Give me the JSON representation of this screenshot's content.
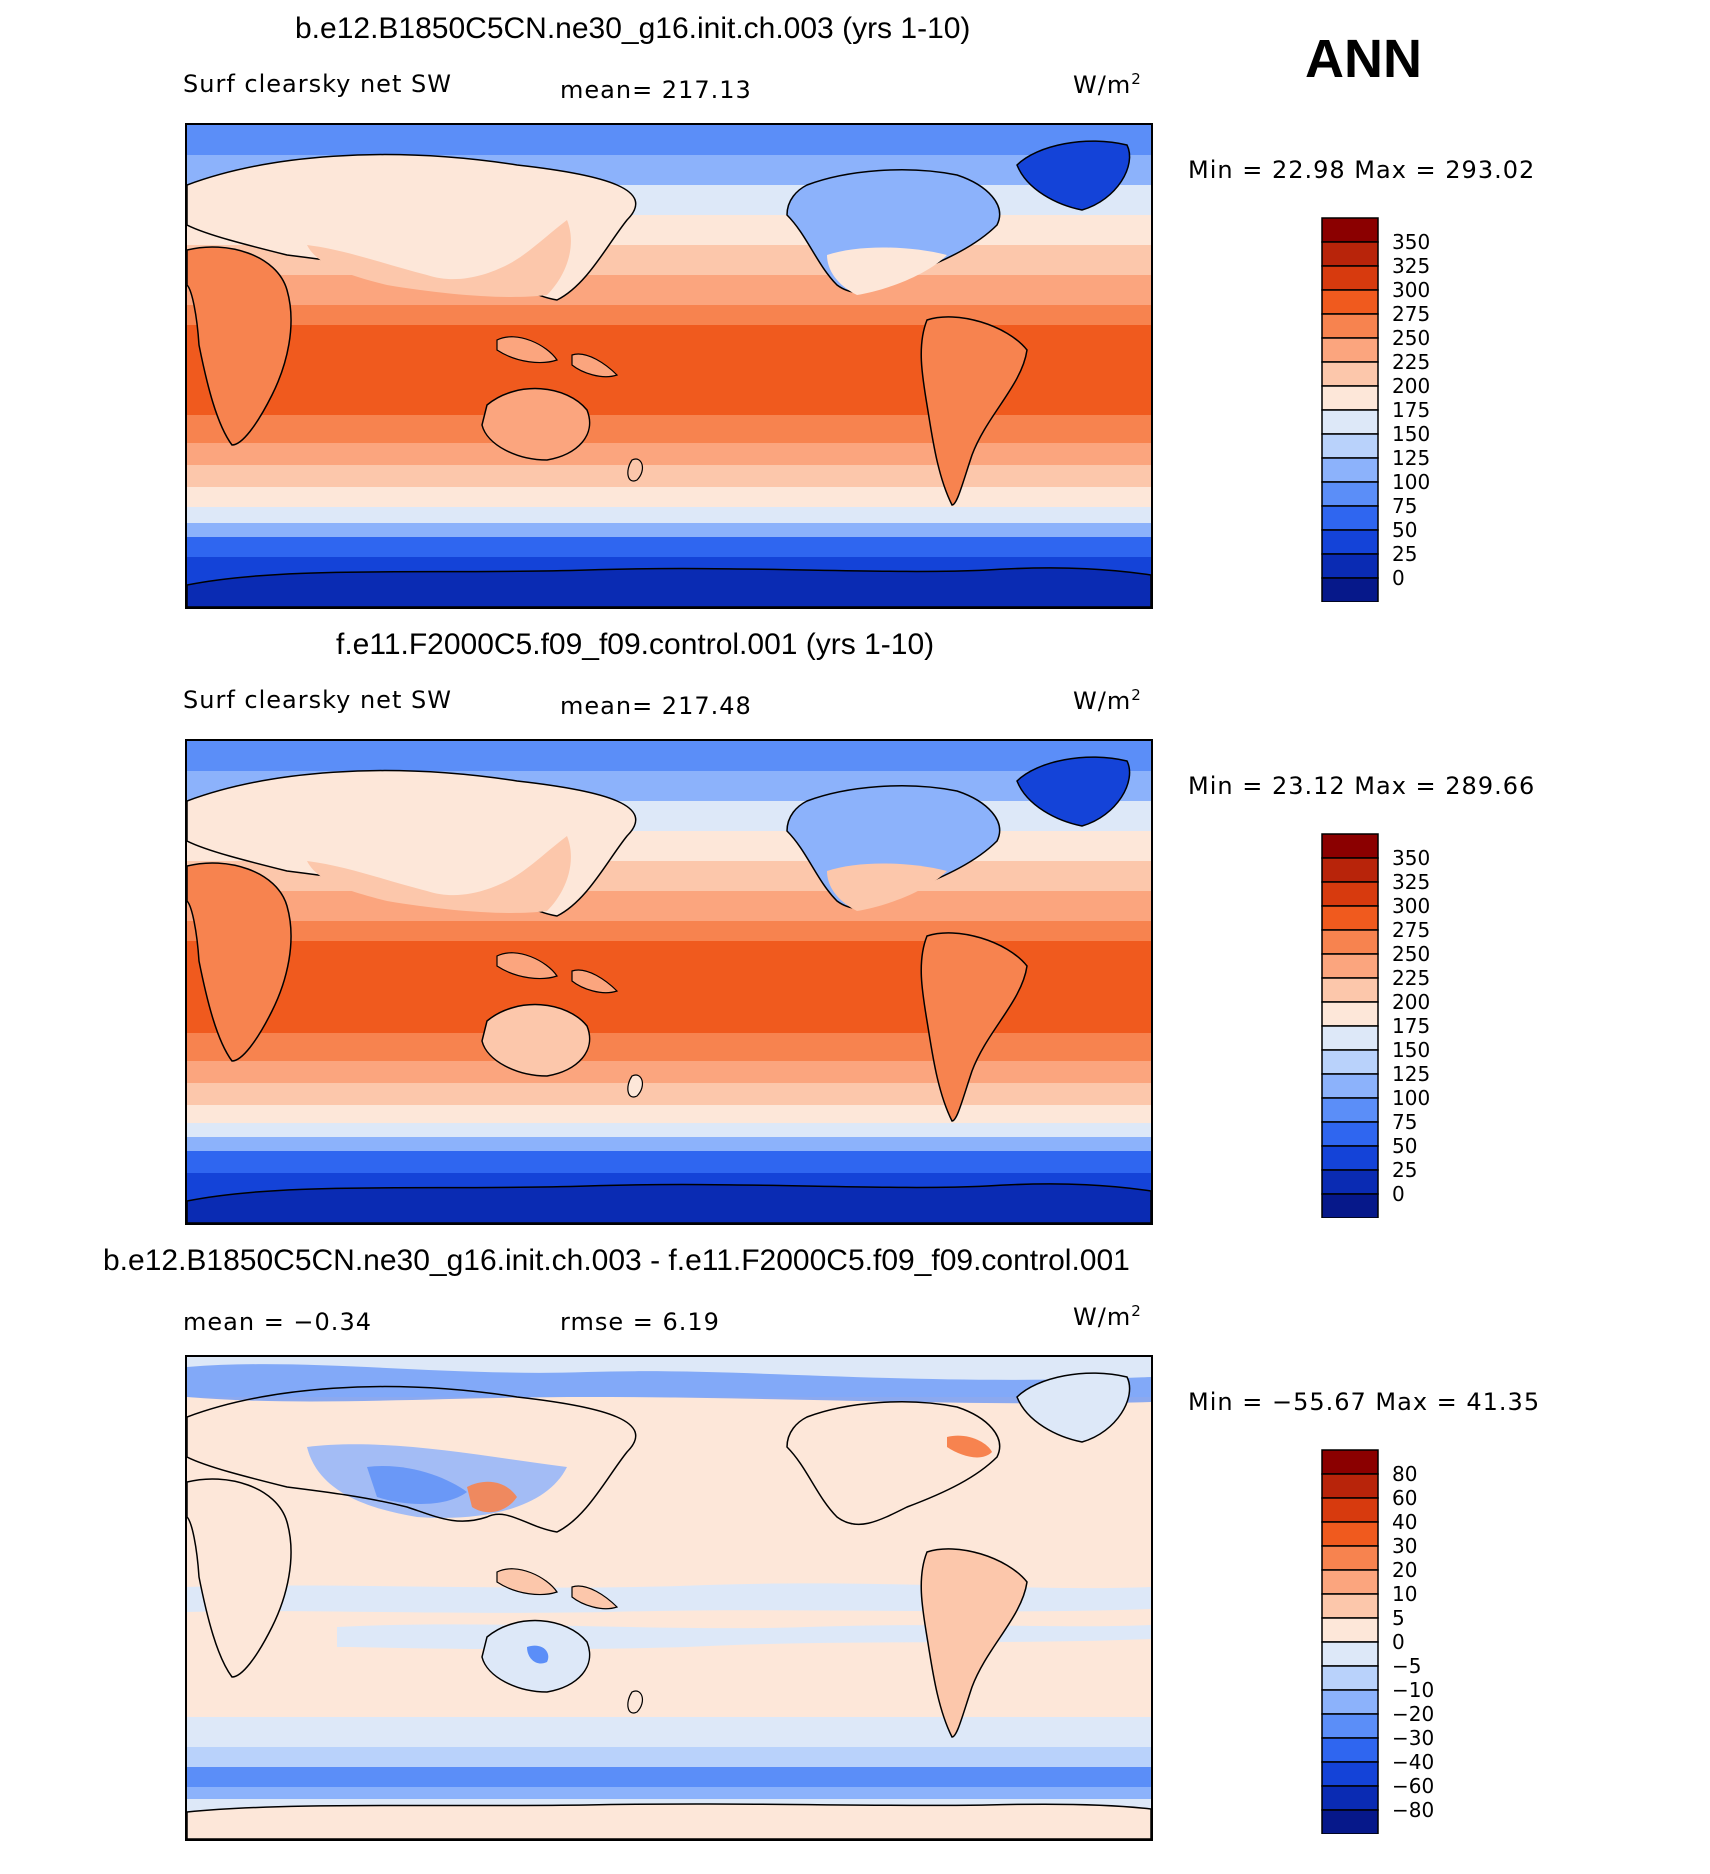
{
  "season": "ANN",
  "panels": [
    {
      "title": "b.e12.B1850C5CN.ne30_g16.init.ch.003 (yrs 1-10)",
      "left_label": "Surf clearsky net SW",
      "center_label": "mean= 217.13",
      "units": "W/m",
      "units_exp": "2",
      "minmax": "Min =   22.98 Max = 293.02",
      "kind": "field"
    },
    {
      "title": "f.e11.F2000C5.f09_f09.control.001 (yrs 1-10)",
      "left_label": "Surf clearsky net SW",
      "center_label": "mean= 217.48",
      "units": "W/m",
      "units_exp": "2",
      "minmax": "Min =   23.12 Max = 289.66",
      "kind": "field"
    },
    {
      "title": "b.e12.B1850C5CN.ne30_g16.init.ch.003 - f.e11.F2000C5.f09_f09.control.001",
      "left_label": "mean =   −0.34",
      "center_label": "rmse =     6.19",
      "units": "W/m",
      "units_exp": "2",
      "minmax": "Min = −55.67 Max =   41.35",
      "kind": "diff"
    }
  ],
  "colorbars": {
    "field": {
      "labels": [
        "350",
        "325",
        "300",
        "275",
        "250",
        "225",
        "200",
        "175",
        "150",
        "125",
        "100",
        "75",
        "50",
        "25",
        "0"
      ],
      "colors": [
        "#8b0000",
        "#b8240a",
        "#d73a0e",
        "#f05a1e",
        "#f7834f",
        "#fba57e",
        "#fcc7ab",
        "#fde7d9",
        "#dde8f8",
        "#b9d2fb",
        "#8cb2fb",
        "#5b8ef8",
        "#2f66f0",
        "#1443d8",
        "#0a2bb3",
        "#06188a"
      ]
    },
    "diff": {
      "labels": [
        "80",
        "60",
        "40",
        "30",
        "20",
        "10",
        "5",
        "0",
        "−5",
        "−10",
        "−20",
        "−30",
        "−40",
        "−60",
        "−80"
      ],
      "colors": [
        "#8b0000",
        "#b8240a",
        "#d73a0e",
        "#f05a1e",
        "#f7834f",
        "#fba57e",
        "#fcc7ab",
        "#fde7d9",
        "#dde8f8",
        "#b9d2fb",
        "#8cb2fb",
        "#5b8ef8",
        "#2f66f0",
        "#1443d8",
        "#0a2bb3",
        "#06188a"
      ]
    }
  }
}
